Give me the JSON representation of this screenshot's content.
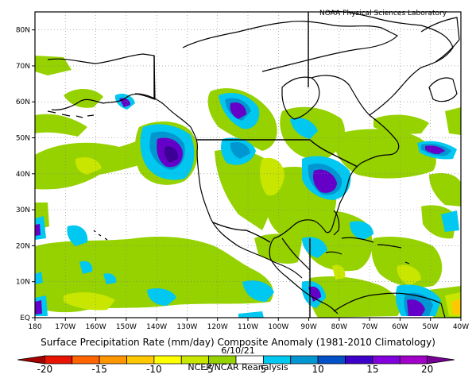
{
  "credit": "NOAA Physical Sciences Laboratory",
  "title": "Surface Precipitation Rate (mm/day) Composite Anomaly (1981-2010 Climatology)",
  "date": "6/10/21",
  "source": "NCEP/NCAR Reanalysis",
  "axes": {
    "lat_labels": [
      "EQ",
      "10N",
      "20N",
      "30N",
      "40N",
      "50N",
      "60N",
      "70N",
      "80N"
    ],
    "lon_labels": [
      "180",
      "170W",
      "160W",
      "150W",
      "140W",
      "130W",
      "120W",
      "110W",
      "100W",
      "90W",
      "80W",
      "70W",
      "60W",
      "50W",
      "40W"
    ],
    "lat_range": [
      0,
      85
    ],
    "lon_range": [
      -180,
      -40
    ],
    "gridlines": "dotted"
  },
  "colorbar": {
    "ticks": [
      "-20",
      "-15",
      "-10",
      "-5",
      "5",
      "10",
      "15",
      "20"
    ],
    "colors": [
      "#a50000",
      "#e81400",
      "#ff6400",
      "#ff9600",
      "#ffc800",
      "#ffff00",
      "#c8e600",
      "#96d200",
      "#ffffff",
      "#00c8f0",
      "#0096d2",
      "#0050c8",
      "#3c00c8",
      "#8200dc",
      "#a000c8",
      "#780096"
    ]
  },
  "palette": {
    "coast": "#000000",
    "light_green": "#96d200",
    "dark_green": "#4ec800",
    "yellow_green": "#c8e600",
    "cyan": "#00c8f0",
    "blue": "#0096d2",
    "purple": "#6400c8",
    "dark_purple": "#3c0096"
  },
  "map": {
    "projection": "cylindrical equidistant",
    "region": "North Pacific, North America and western North Atlantic"
  }
}
